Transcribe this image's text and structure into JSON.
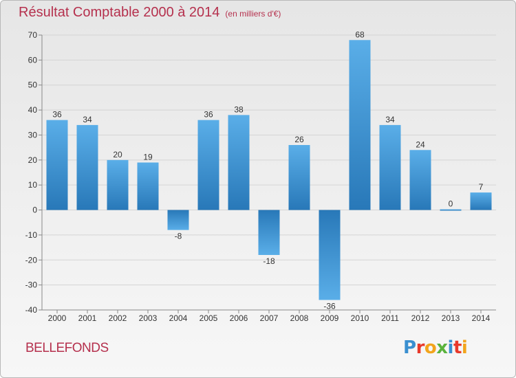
{
  "header": {
    "title": "Résultat Comptable 2000 à 2014",
    "unit": "(en milliers d'€)"
  },
  "footer": {
    "commune": "BELLEFONDS",
    "logo": "Proxiti"
  },
  "colors": {
    "title": "#b5304d",
    "bar_light": "#5aaee8",
    "bar_dark": "#2878b8",
    "logo_letters": [
      "#3a8fd0",
      "#e8392b",
      "#f2a41c",
      "#5ab33d",
      "#3a8fd0",
      "#e8392b",
      "#f2a41c"
    ]
  },
  "chart_data": {
    "type": "bar",
    "title": "Résultat Comptable 2000 à 2014",
    "subtitle": "(en milliers d'€)",
    "xlabel": "",
    "ylabel": "",
    "categories": [
      "2000",
      "2001",
      "2002",
      "2003",
      "2004",
      "2005",
      "2006",
      "2007",
      "2008",
      "2009",
      "2010",
      "2011",
      "2012",
      "2013",
      "2014"
    ],
    "values": [
      36,
      34,
      20,
      19,
      -8,
      36,
      38,
      -18,
      26,
      -36,
      68,
      34,
      24,
      0,
      7
    ],
    "ylim": [
      -40,
      70
    ],
    "yticks": [
      -40,
      -30,
      -20,
      -10,
      0,
      10,
      20,
      30,
      40,
      50,
      60,
      70
    ],
    "grid": true
  }
}
